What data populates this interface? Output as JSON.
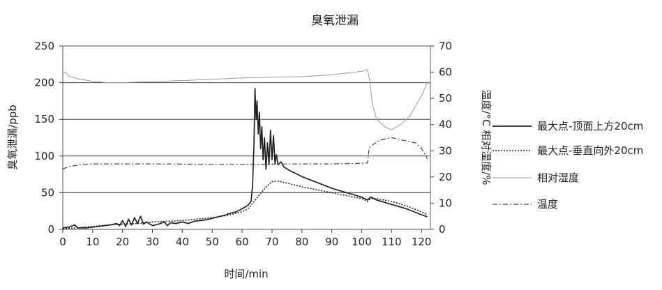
{
  "chart_data": {
    "type": "line",
    "title": "臭氧泄漏",
    "xlabel": "时间/min",
    "ylabel_left": "臭氧泄漏/ppb",
    "ylabel_right": "温度/°C  相对湿度/%",
    "xlim": [
      0,
      123
    ],
    "ylim_left": [
      0,
      250
    ],
    "ylim_right": [
      0,
      70
    ],
    "x_ticks": [
      0,
      10,
      20,
      30,
      40,
      50,
      60,
      70,
      80,
      90,
      100,
      110,
      120
    ],
    "y_left_ticks": [
      0,
      50,
      100,
      150,
      200,
      250
    ],
    "y_right_ticks": [
      0,
      10,
      20,
      30,
      40,
      50,
      60,
      70
    ],
    "grid": "horizontal",
    "legend_position": "right",
    "series": [
      {
        "name": "最大点-顶面上方20cm",
        "axis": "left",
        "style": "solid-thick",
        "color": "#222222",
        "points": [
          [
            0,
            2
          ],
          [
            2,
            3
          ],
          [
            4,
            6
          ],
          [
            5,
            2
          ],
          [
            8,
            2
          ],
          [
            10,
            3
          ],
          [
            12,
            4
          ],
          [
            14,
            5
          ],
          [
            16,
            6
          ],
          [
            18,
            8
          ],
          [
            19,
            5
          ],
          [
            20,
            12
          ],
          [
            21,
            4
          ],
          [
            22,
            14
          ],
          [
            23,
            6
          ],
          [
            24,
            16
          ],
          [
            25,
            8
          ],
          [
            26,
            18
          ],
          [
            27,
            7
          ],
          [
            28,
            10
          ],
          [
            30,
            5
          ],
          [
            32,
            7
          ],
          [
            34,
            10
          ],
          [
            35,
            5
          ],
          [
            36,
            9
          ],
          [
            38,
            8
          ],
          [
            40,
            10
          ],
          [
            42,
            8
          ],
          [
            44,
            11
          ],
          [
            46,
            12
          ],
          [
            48,
            13
          ],
          [
            50,
            15
          ],
          [
            52,
            17
          ],
          [
            54,
            19
          ],
          [
            56,
            22
          ],
          [
            58,
            24
          ],
          [
            60,
            28
          ],
          [
            62,
            33
          ],
          [
            63,
            38
          ],
          [
            63.5,
            60
          ],
          [
            64,
            120
          ],
          [
            64.3,
            192
          ],
          [
            64.7,
            150
          ],
          [
            65,
            175
          ],
          [
            65.4,
            130
          ],
          [
            65.8,
            160
          ],
          [
            66.2,
            110
          ],
          [
            66.6,
            140
          ],
          [
            67,
            95
          ],
          [
            67.5,
            125
          ],
          [
            68,
            82
          ],
          [
            68.5,
            118
          ],
          [
            69,
            88
          ],
          [
            69.5,
            135
          ],
          [
            70,
            95
          ],
          [
            70.5,
            128
          ],
          [
            71,
            90
          ],
          [
            71.5,
            102
          ],
          [
            72,
            88
          ],
          [
            73,
            92
          ],
          [
            74,
            85
          ],
          [
            76,
            80
          ],
          [
            78,
            76
          ],
          [
            80,
            72
          ],
          [
            85,
            64
          ],
          [
            90,
            56
          ],
          [
            95,
            50
          ],
          [
            100,
            44
          ],
          [
            102,
            40
          ],
          [
            103,
            44
          ],
          [
            105,
            40
          ],
          [
            110,
            34
          ],
          [
            115,
            28
          ],
          [
            120,
            20
          ],
          [
            122,
            17
          ]
        ]
      },
      {
        "name": "最大点-垂直向外20cm",
        "axis": "left",
        "style": "dotted",
        "color": "#222222",
        "points": [
          [
            0,
            1
          ],
          [
            5,
            2
          ],
          [
            10,
            4
          ],
          [
            15,
            6
          ],
          [
            20,
            7
          ],
          [
            25,
            8
          ],
          [
            30,
            10
          ],
          [
            35,
            11
          ],
          [
            40,
            12
          ],
          [
            45,
            14
          ],
          [
            50,
            16
          ],
          [
            55,
            19
          ],
          [
            60,
            24
          ],
          [
            62,
            28
          ],
          [
            64,
            38
          ],
          [
            66,
            48
          ],
          [
            68,
            58
          ],
          [
            70,
            65
          ],
          [
            72,
            66
          ],
          [
            75,
            63
          ],
          [
            80,
            58
          ],
          [
            85,
            54
          ],
          [
            90,
            50
          ],
          [
            95,
            46
          ],
          [
            100,
            42
          ],
          [
            102,
            38
          ],
          [
            103,
            42
          ],
          [
            105,
            42
          ],
          [
            110,
            38
          ],
          [
            115,
            32
          ],
          [
            120,
            24
          ],
          [
            122,
            20
          ]
        ]
      },
      {
        "name": "相对湿度",
        "axis": "right",
        "style": "solid-thin",
        "color": "#9a9a9a",
        "points": [
          [
            0,
            59.5
          ],
          [
            1,
            60
          ],
          [
            2,
            58.5
          ],
          [
            5,
            57.5
          ],
          [
            10,
            56.5
          ],
          [
            15,
            56
          ],
          [
            20,
            56
          ],
          [
            25,
            56.2
          ],
          [
            30,
            56.4
          ],
          [
            40,
            56.8
          ],
          [
            50,
            57.3
          ],
          [
            60,
            57.8
          ],
          [
            70,
            58.1
          ],
          [
            80,
            58.3
          ],
          [
            90,
            59
          ],
          [
            100,
            60.3
          ],
          [
            102,
            61
          ],
          [
            102.8,
            56
          ],
          [
            103.5,
            48
          ],
          [
            105,
            42
          ],
          [
            108,
            39
          ],
          [
            110,
            38
          ],
          [
            113,
            40
          ],
          [
            116,
            43
          ],
          [
            118,
            47
          ],
          [
            120,
            51
          ],
          [
            122,
            56
          ]
        ]
      },
      {
        "name": "温度",
        "axis": "right",
        "style": "dash-dot",
        "color": "#444444",
        "points": [
          [
            0,
            23
          ],
          [
            2,
            24
          ],
          [
            5,
            24.5
          ],
          [
            8,
            24.8
          ],
          [
            10,
            25
          ],
          [
            20,
            25
          ],
          [
            30,
            25
          ],
          [
            40,
            24.9
          ],
          [
            50,
            24.8
          ],
          [
            60,
            24.8
          ],
          [
            70,
            24.9
          ],
          [
            80,
            25
          ],
          [
            90,
            25
          ],
          [
            100,
            25.2
          ],
          [
            102,
            25.4
          ],
          [
            102.5,
            31
          ],
          [
            104,
            32.5
          ],
          [
            106,
            34
          ],
          [
            108,
            34.5
          ],
          [
            110,
            35
          ],
          [
            112,
            34.5
          ],
          [
            114,
            34
          ],
          [
            116,
            33.5
          ],
          [
            118,
            33
          ],
          [
            120,
            31
          ],
          [
            121,
            29
          ],
          [
            122,
            27
          ]
        ]
      }
    ]
  }
}
